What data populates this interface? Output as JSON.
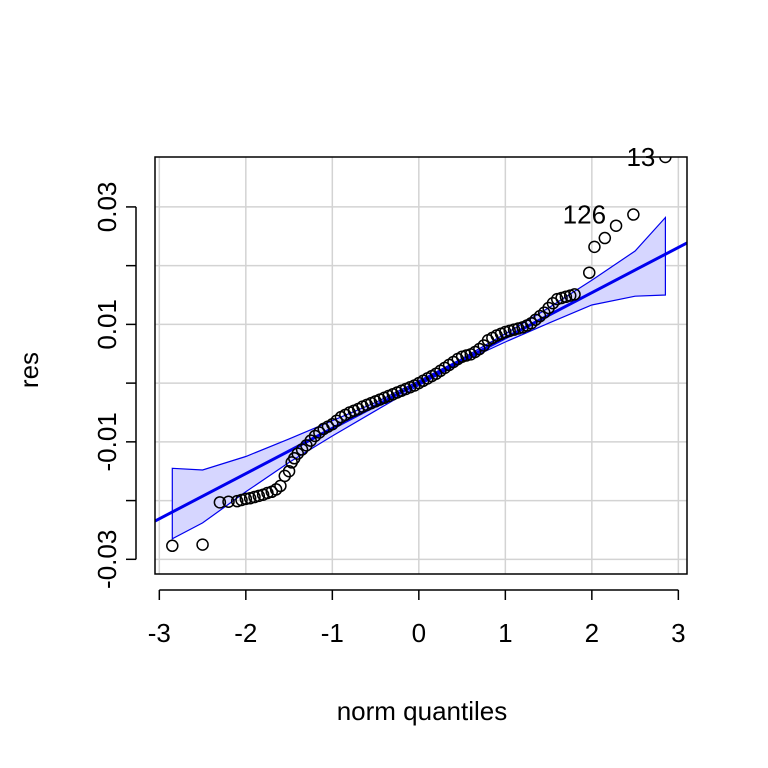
{
  "chart_data": {
    "type": "scatter",
    "title": "",
    "xlabel": "norm quantiles",
    "ylabel": "res",
    "xlim": [
      -3.05,
      3.1
    ],
    "ylim": [
      -0.0325,
      0.0385
    ],
    "xticks": [
      -3,
      -2,
      -1,
      0,
      1,
      2,
      3
    ],
    "xtick_labels": [
      "-3",
      "-2",
      "-1",
      "0",
      "1",
      "2",
      "3"
    ],
    "yticks": [
      -0.03,
      -0.01,
      0.01,
      0.03
    ],
    "ytick_labels": [
      "-0.03",
      "-0.01",
      "0.01",
      "0.03"
    ],
    "y_minor_ticks": [
      -0.03,
      -0.02,
      -0.01,
      0.0,
      0.01,
      0.02,
      0.03
    ],
    "grid": true,
    "legend": "none",
    "colors": {
      "points": "#000000",
      "fit_line": "#0000ee",
      "band_fill": "#d6d6ff",
      "band_stroke": "#0000ee",
      "grid": "#d3d3d3"
    },
    "fit_line": {
      "intercept": 0.0,
      "slope": 0.0077
    },
    "confidence_band": {
      "x": [
        -2.85,
        -2.5,
        -2.0,
        -1.5,
        -1.0,
        -0.5,
        0.0,
        0.5,
        1.0,
        1.5,
        2.0,
        2.5,
        2.85
      ],
      "upper": [
        -0.0145,
        -0.0148,
        -0.0125,
        -0.0095,
        -0.0064,
        -0.0033,
        0.0004,
        0.0042,
        0.0084,
        0.0128,
        0.0175,
        0.0225,
        0.0282
      ],
      "lower": [
        -0.0265,
        -0.0238,
        -0.0185,
        -0.0135,
        -0.009,
        -0.0047,
        -0.0004,
        0.0036,
        0.007,
        0.0102,
        0.0133,
        0.0148,
        0.015
      ]
    },
    "points": {
      "x": [
        -2.85,
        -2.5,
        -2.3,
        -2.2,
        -2.1,
        -2.05,
        -2.0,
        -1.95,
        -1.9,
        -1.85,
        -1.8,
        -1.75,
        -1.7,
        -1.65,
        -1.6,
        -1.55,
        -1.5,
        -1.47,
        -1.44,
        -1.4,
        -1.35,
        -1.3,
        -1.25,
        -1.2,
        -1.15,
        -1.1,
        -1.05,
        -1.0,
        -0.95,
        -0.9,
        -0.85,
        -0.8,
        -0.75,
        -0.7,
        -0.65,
        -0.6,
        -0.55,
        -0.5,
        -0.45,
        -0.4,
        -0.35,
        -0.3,
        -0.25,
        -0.2,
        -0.15,
        -0.1,
        -0.05,
        0.0,
        0.05,
        0.1,
        0.15,
        0.2,
        0.25,
        0.3,
        0.35,
        0.4,
        0.45,
        0.5,
        0.55,
        0.6,
        0.65,
        0.7,
        0.75,
        0.8,
        0.85,
        0.9,
        0.95,
        1.0,
        1.05,
        1.1,
        1.15,
        1.2,
        1.25,
        1.3,
        1.35,
        1.4,
        1.45,
        1.5,
        1.55,
        1.6,
        1.65,
        1.7,
        1.75,
        1.8,
        1.97,
        2.03,
        2.15,
        2.28,
        2.48,
        2.85
      ],
      "y": [
        -0.0277,
        -0.0275,
        -0.0203,
        -0.0202,
        -0.0201,
        -0.0199,
        -0.0197,
        -0.0196,
        -0.0194,
        -0.0192,
        -0.019,
        -0.0187,
        -0.0185,
        -0.0181,
        -0.0175,
        -0.0158,
        -0.015,
        -0.0135,
        -0.0128,
        -0.012,
        -0.0113,
        -0.0106,
        -0.0098,
        -0.009,
        -0.0084,
        -0.0078,
        -0.0074,
        -0.007,
        -0.0064,
        -0.0058,
        -0.0054,
        -0.005,
        -0.0047,
        -0.0044,
        -0.004,
        -0.0037,
        -0.0034,
        -0.0031,
        -0.0028,
        -0.0025,
        -0.0022,
        -0.0019,
        -0.0016,
        -0.0013,
        -0.001,
        -0.0007,
        -0.0004,
        0.0,
        0.0004,
        0.0008,
        0.0012,
        0.0016,
        0.0021,
        0.0026,
        0.0031,
        0.0036,
        0.0041,
        0.0045,
        0.0047,
        0.0049,
        0.0053,
        0.0058,
        0.0064,
        0.0073,
        0.0077,
        0.0081,
        0.0084,
        0.0087,
        0.0089,
        0.0091,
        0.0093,
        0.0095,
        0.0098,
        0.0102,
        0.0108,
        0.0114,
        0.012,
        0.0128,
        0.0136,
        0.0143,
        0.0145,
        0.0147,
        0.0149,
        0.0151,
        0.0188,
        0.0232,
        0.0247,
        0.0268,
        0.0287,
        0.0385
      ]
    },
    "annotations": [
      {
        "text": "13",
        "x": 2.85,
        "y": 0.0385
      },
      {
        "text": "126",
        "x": 2.28,
        "y": 0.0287
      }
    ]
  }
}
